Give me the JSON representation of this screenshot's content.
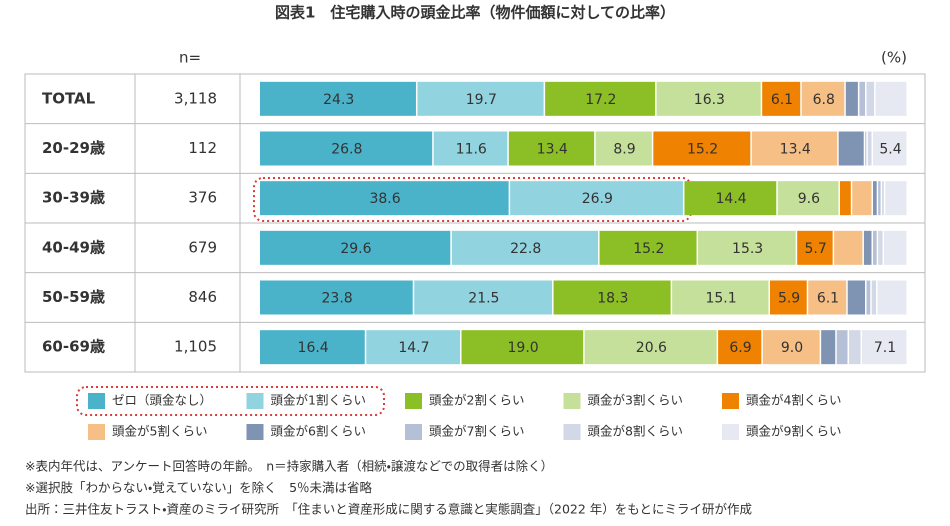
{
  "chart_data": {
    "type": "bar",
    "orientation": "horizontal",
    "stacked": true,
    "title": "図表1　住宅購入時の頭金比率（物件価額に対しての比率）",
    "n_header": "n=",
    "unit_label": "(%)",
    "categories": [
      "TOTAL",
      "20-29歳",
      "30-39歳",
      "40-49歳",
      "50-59歳",
      "60-69歳"
    ],
    "n": [
      "3,118",
      "112",
      "376",
      "679",
      "846",
      "1,105"
    ],
    "xlim": [
      0,
      100
    ],
    "series": [
      {
        "name": "ゼロ（頭金なし）",
        "color": "#4bb3c9",
        "values": [
          24.3,
          26.8,
          38.6,
          29.6,
          23.8,
          16.4
        ],
        "value_labels": [
          "24.3",
          "26.8",
          "38.6",
          "29.6",
          "23.8",
          "16.4"
        ]
      },
      {
        "name": "頭金が1割くらい",
        "color": "#92d3e0",
        "values": [
          19.7,
          11.6,
          26.9,
          22.8,
          21.5,
          14.7
        ],
        "value_labels": [
          "19.7",
          "11.6",
          "26.9",
          "22.8",
          "21.5",
          "14.7"
        ]
      },
      {
        "name": "頭金が2割くらい",
        "color": "#8cbf26",
        "values": [
          17.2,
          13.4,
          14.4,
          15.2,
          18.3,
          19.0
        ],
        "value_labels": [
          "17.2",
          "13.4",
          "14.4",
          "15.2",
          "18.3",
          "19.0"
        ]
      },
      {
        "name": "頭金が3割くらい",
        "color": "#c5e09a",
        "values": [
          16.3,
          8.9,
          9.6,
          15.3,
          15.1,
          20.6
        ],
        "value_labels": [
          "16.3",
          "8.9",
          "9.6",
          "15.3",
          "15.1",
          "20.6"
        ]
      },
      {
        "name": "頭金が4割くらい",
        "color": "#ef8200",
        "values": [
          6.1,
          15.2,
          1.9,
          5.7,
          5.9,
          6.9
        ],
        "value_labels": [
          "6.1",
          "15.2",
          null,
          "5.7",
          "5.9",
          "6.9"
        ]
      },
      {
        "name": "頭金が5割くらい",
        "color": "#f6bf86",
        "values": [
          6.8,
          13.4,
          3.2,
          4.6,
          6.1,
          9.0
        ],
        "value_labels": [
          "6.8",
          "13.4",
          null,
          null,
          "6.1",
          "9.0"
        ]
      },
      {
        "name": "頭金が6割くらい",
        "color": "#7f93b3",
        "values": [
          2.1,
          4.1,
          0.8,
          1.4,
          2.9,
          2.4
        ],
        "value_labels": [
          null,
          null,
          null,
          null,
          null,
          null
        ]
      },
      {
        "name": "頭金が7割くらい",
        "color": "#b5c0d6",
        "values": [
          1.1,
          0.4,
          0.6,
          0.8,
          0.8,
          1.9
        ],
        "value_labels": [
          null,
          null,
          null,
          null,
          null,
          null
        ]
      },
      {
        "name": "頭金が8割くらい",
        "color": "#d2d8e6",
        "values": [
          1.4,
          0.8,
          0.5,
          0.9,
          0.9,
          2.0
        ],
        "value_labels": [
          null,
          null,
          null,
          null,
          null,
          null
        ]
      },
      {
        "name": "頭金が9割くらい",
        "color": "#e6e9f1",
        "values": [
          5.0,
          5.4,
          3.5,
          3.7,
          4.7,
          7.1
        ],
        "value_labels": [
          null,
          "5.4",
          null,
          null,
          null,
          "7.1"
        ]
      }
    ],
    "notes": [
      "※表内年代は、アンケート回答時の年齢。　n＝持家購入者（相続・譲渡などでの取得者は除く）",
      "※選択肢「わからない・覚えていない」を除く　5％未満は省略",
      "出所：三井住友トラスト・資産のミライ研究所　「住まいと資産形成に関する意識と実態調査」（2022 年）をもとにミライ研が作成"
    ]
  }
}
